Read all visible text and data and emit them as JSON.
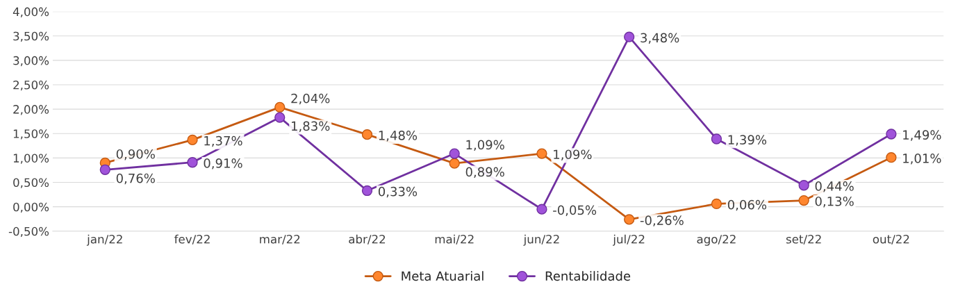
{
  "chart_data": {
    "type": "line",
    "categories": [
      "jan/22",
      "fev/22",
      "mar/22",
      "abr/22",
      "mai/22",
      "jun/22",
      "jul/22",
      "ago/22",
      "set/22",
      "out/22"
    ],
    "series": [
      {
        "name": "Meta Atuarial",
        "color": "#c55a11",
        "values": [
          0.9,
          1.37,
          2.04,
          1.48,
          0.89,
          1.09,
          -0.26,
          0.06,
          0.13,
          1.01
        ],
        "value_labels": [
          "0,90%",
          "1,37%",
          "2,04%",
          "1,48%",
          "0,89%",
          "1,09%",
          "-0,26%",
          "0,06%",
          "0,13%",
          "1,01%"
        ]
      },
      {
        "name": "Rentabilidade",
        "color": "#7030a0",
        "values": [
          0.76,
          0.91,
          1.83,
          0.33,
          1.09,
          -0.05,
          3.48,
          1.39,
          0.44,
          1.49
        ],
        "value_labels": [
          "0,76%",
          "0,91%",
          "1,83%",
          "0,33%",
          "1,09%",
          "-0,05%",
          "3,48%",
          "1,39%",
          "0,44%",
          "1,49%"
        ]
      }
    ],
    "ylim": [
      -0.5,
      4.0
    ],
    "yticks": [
      {
        "value": -0.5,
        "label": "-0,50%"
      },
      {
        "value": 0,
        "label": "0,00%"
      },
      {
        "value": 0.5,
        "label": "0,50%"
      },
      {
        "value": 1.0,
        "label": "1,00%"
      },
      {
        "value": 1.5,
        "label": "1,50%"
      },
      {
        "value": 2.0,
        "label": "2,00%"
      },
      {
        "value": 2.5,
        "label": "2,50%"
      },
      {
        "value": 3.0,
        "label": "3,00%"
      },
      {
        "value": 3.5,
        "label": "3,50%"
      },
      {
        "value": 4.0,
        "label": "4,00%"
      }
    ],
    "grid": "y",
    "legend": "bottom",
    "marker": "circle",
    "line_style": "solid"
  }
}
